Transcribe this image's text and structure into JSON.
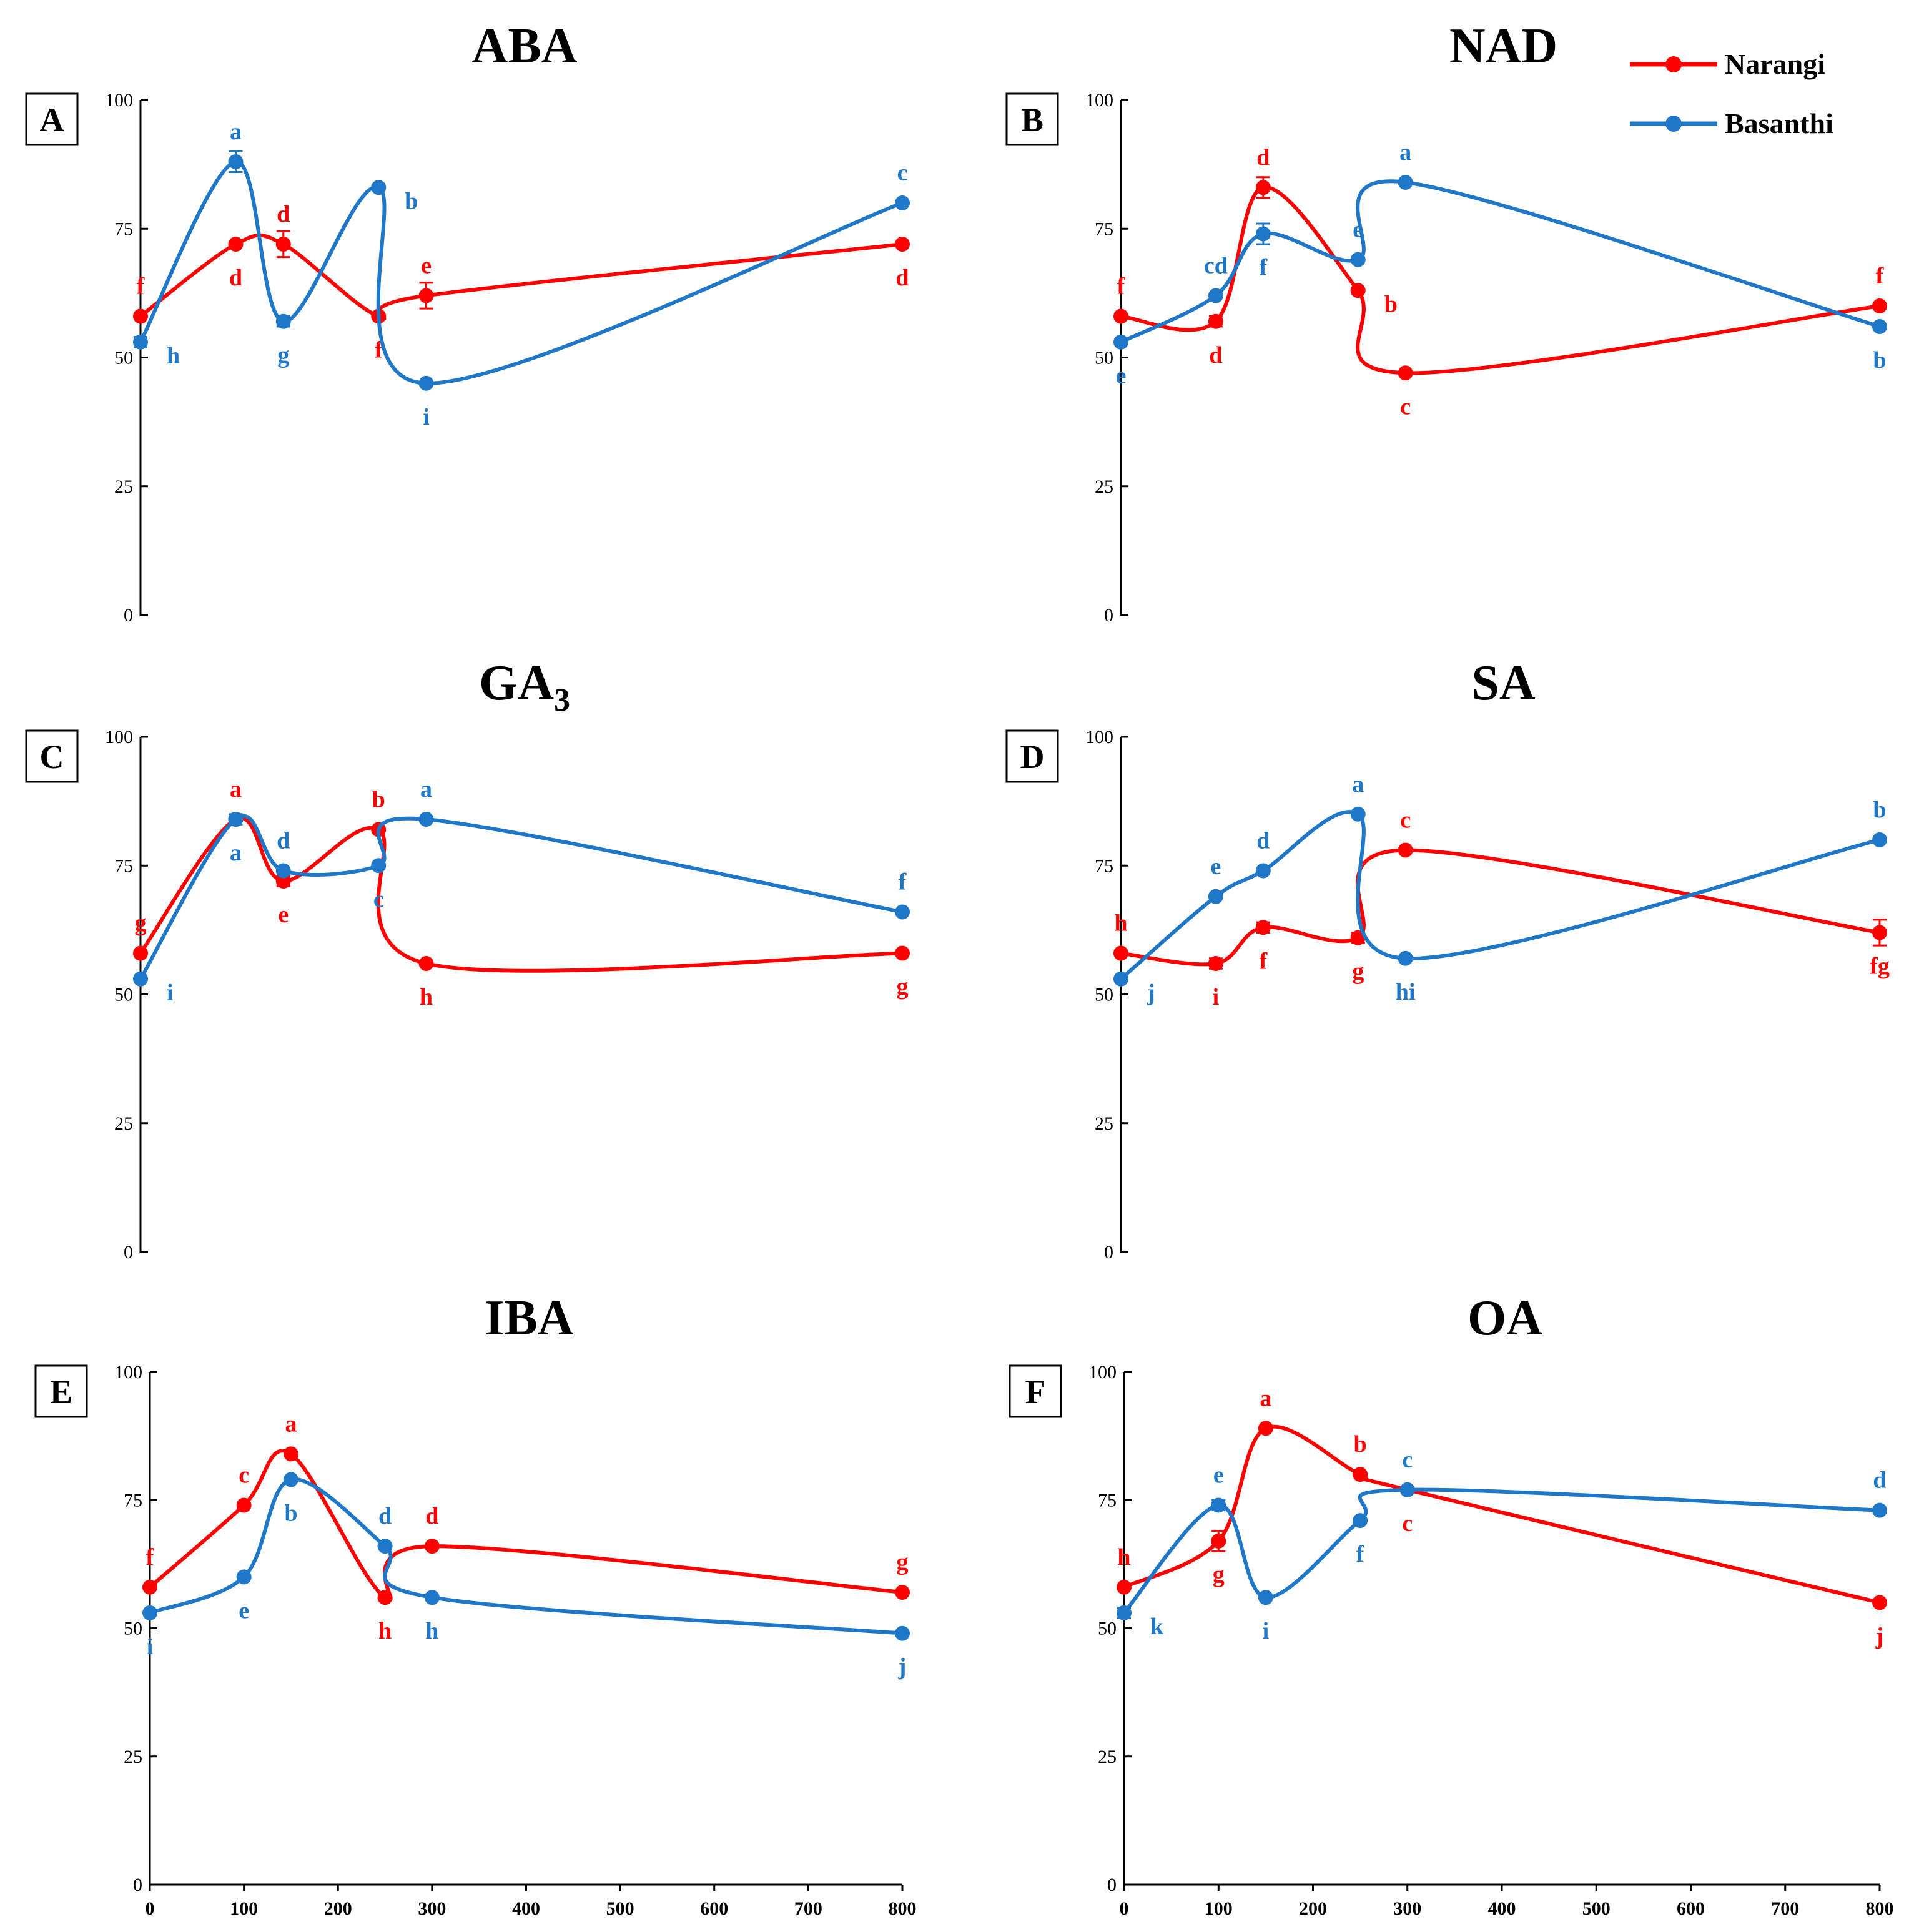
{
  "legend": [
    {
      "name": "Narangi",
      "color": "#FF0000"
    },
    {
      "name": "Basanthi",
      "color": "#1F77C8"
    }
  ],
  "chart_data": [
    {
      "type": "line",
      "panel": "A",
      "title": "ABA",
      "title_sub": "",
      "xlim": [
        0,
        800
      ],
      "ylim": [
        0,
        100
      ],
      "yticks": [
        "0",
        "25",
        "50",
        "75",
        "100"
      ],
      "xticks": [],
      "series": [
        {
          "name": "Narangi",
          "x": [
            0,
            100,
            150,
            250,
            300,
            800
          ],
          "y": [
            58,
            72,
            72,
            58,
            62,
            72
          ],
          "err": [
            0,
            0,
            2.5,
            0,
            2.5,
            0
          ],
          "labels": [
            "f",
            "d",
            "d",
            "f",
            "e",
            "d"
          ],
          "label_pos": [
            "above",
            "below",
            "above",
            "below",
            "above",
            "below"
          ]
        },
        {
          "name": "Basanthi",
          "x": [
            0,
            100,
            150,
            250,
            300,
            800
          ],
          "y": [
            53,
            88,
            57,
            83,
            45,
            80
          ],
          "err": [
            1,
            2,
            1,
            0.5,
            0,
            0
          ],
          "labels": [
            "h",
            "a",
            "g",
            "b",
            "i",
            "c"
          ],
          "label_pos": [
            "right",
            "above",
            "below",
            "right",
            "below",
            "above"
          ]
        }
      ]
    },
    {
      "type": "line",
      "panel": "B",
      "title": "NAD",
      "title_sub": "",
      "xlim": [
        0,
        800
      ],
      "ylim": [
        0,
        100
      ],
      "yticks": [
        "0",
        "25",
        "50",
        "75",
        "100"
      ],
      "xticks": [],
      "series": [
        {
          "name": "Narangi",
          "x": [
            0,
            100,
            150,
            250,
            300,
            800
          ],
          "y": [
            58,
            57,
            83,
            63,
            47,
            60
          ],
          "err": [
            0,
            1,
            2,
            0,
            0,
            0
          ],
          "labels": [
            "f",
            "d",
            "d",
            "b",
            "c",
            "f"
          ],
          "label_pos": [
            "above",
            "below",
            "above",
            "right",
            "below",
            "above"
          ]
        },
        {
          "name": "Basanthi",
          "x": [
            0,
            100,
            150,
            250,
            300,
            800
          ],
          "y": [
            53,
            62,
            74,
            69,
            84,
            56
          ],
          "err": [
            0,
            0,
            2,
            0,
            0,
            0
          ],
          "labels": [
            "e",
            "cd",
            "f",
            "e",
            "a",
            "b"
          ],
          "label_pos": [
            "below",
            "above",
            "below",
            "above",
            "above",
            "below"
          ]
        }
      ]
    },
    {
      "type": "line",
      "panel": "C",
      "title": "GA",
      "title_sub": "3",
      "xlim": [
        0,
        800
      ],
      "ylim": [
        0,
        100
      ],
      "yticks": [
        "0",
        "25",
        "50",
        "75",
        "100"
      ],
      "xticks": [],
      "series": [
        {
          "name": "Narangi",
          "x": [
            0,
            100,
            150,
            250,
            300,
            800
          ],
          "y": [
            58,
            84,
            72,
            82,
            56,
            58
          ],
          "err": [
            0,
            0,
            1,
            0,
            0,
            0
          ],
          "labels": [
            "g",
            "a",
            "e",
            "b",
            "h",
            "g"
          ],
          "label_pos": [
            "above",
            "above",
            "below",
            "above",
            "below",
            "below"
          ]
        },
        {
          "name": "Basanthi",
          "x": [
            0,
            100,
            150,
            250,
            300,
            800
          ],
          "y": [
            53,
            84,
            74,
            75,
            84,
            66
          ],
          "err": [
            0,
            1,
            0,
            0,
            0,
            0
          ],
          "labels": [
            "i",
            "a",
            "d",
            "c",
            "a",
            "f"
          ],
          "label_pos": [
            "right",
            "below",
            "above",
            "below",
            "above",
            "above"
          ]
        }
      ]
    },
    {
      "type": "line",
      "panel": "D",
      "title": "SA",
      "title_sub": "",
      "xlim": [
        0,
        800
      ],
      "ylim": [
        0,
        100
      ],
      "yticks": [
        "0",
        "25",
        "50",
        "75",
        "100"
      ],
      "xticks": [],
      "series": [
        {
          "name": "Narangi",
          "x": [
            0,
            100,
            150,
            250,
            300,
            800
          ],
          "y": [
            58,
            56,
            63,
            61,
            78,
            62
          ],
          "err": [
            0,
            1,
            1,
            1,
            0,
            2.5
          ],
          "labels": [
            "h",
            "i",
            "f",
            "g",
            "c",
            "fg"
          ],
          "label_pos": [
            "above",
            "below",
            "below",
            "below",
            "above",
            "below"
          ]
        },
        {
          "name": "Basanthi",
          "x": [
            0,
            100,
            150,
            250,
            300,
            800
          ],
          "y": [
            53,
            69,
            74,
            85,
            57,
            80
          ],
          "err": [
            0,
            0,
            0,
            0,
            0,
            0
          ],
          "labels": [
            "j",
            "e",
            "d",
            "a",
            "hi",
            "b"
          ],
          "label_pos": [
            "right",
            "above",
            "above",
            "above",
            "below",
            "above"
          ]
        }
      ]
    },
    {
      "type": "line",
      "panel": "E",
      "title": "IBA",
      "title_sub": "",
      "xlim": [
        0,
        800
      ],
      "ylim": [
        0,
        100
      ],
      "yticks": [
        "0",
        "25",
        "50",
        "75",
        "100"
      ],
      "xticks": [
        "0",
        "100",
        "200",
        "300",
        "400",
        "500",
        "600",
        "700",
        "800"
      ],
      "series": [
        {
          "name": "Narangi",
          "x": [
            0,
            100,
            150,
            250,
            300,
            800
          ],
          "y": [
            58,
            74,
            84,
            56,
            66,
            57
          ],
          "err": [
            0,
            0,
            0,
            0,
            0,
            0
          ],
          "labels": [
            "f",
            "c",
            "a",
            "h",
            "d",
            "g"
          ],
          "label_pos": [
            "above",
            "above",
            "above",
            "below",
            "above",
            "above"
          ]
        },
        {
          "name": "Basanthi",
          "x": [
            0,
            100,
            150,
            250,
            300,
            800
          ],
          "y": [
            53,
            60,
            79,
            66,
            56,
            49
          ],
          "err": [
            0,
            0,
            0,
            0,
            0,
            0
          ],
          "labels": [
            "i",
            "e",
            "b",
            "d",
            "h",
            "j"
          ],
          "label_pos": [
            "below",
            "below",
            "below",
            "above",
            "below",
            "below"
          ]
        }
      ]
    },
    {
      "type": "line",
      "panel": "F",
      "title": "OA",
      "title_sub": "",
      "xlim": [
        0,
        800
      ],
      "ylim": [
        0,
        100
      ],
      "yticks": [
        "0",
        "25",
        "50",
        "75",
        "100"
      ],
      "xticks": [
        "0",
        "100",
        "200",
        "300",
        "400",
        "500",
        "600",
        "700",
        "800"
      ],
      "series": [
        {
          "name": "Narangi",
          "x": [
            0,
            100,
            150,
            250,
            300,
            800
          ],
          "y": [
            58,
            67,
            89,
            80,
            77,
            55
          ],
          "err": [
            0,
            2,
            0,
            0,
            0,
            0
          ],
          "labels": [
            "h",
            "g",
            "a",
            "b",
            "c",
            "j"
          ],
          "label_pos": [
            "above",
            "below",
            "above",
            "above",
            "below",
            "below"
          ]
        },
        {
          "name": "Basanthi",
          "x": [
            0,
            100,
            150,
            250,
            300,
            800
          ],
          "y": [
            53,
            74,
            56,
            71,
            77,
            73
          ],
          "err": [
            1,
            1,
            0,
            0,
            0,
            0
          ],
          "labels": [
            "k",
            "e",
            "i",
            "f",
            "c",
            "d"
          ],
          "label_pos": [
            "right",
            "above",
            "below",
            "below",
            "above",
            "above"
          ]
        }
      ]
    }
  ]
}
